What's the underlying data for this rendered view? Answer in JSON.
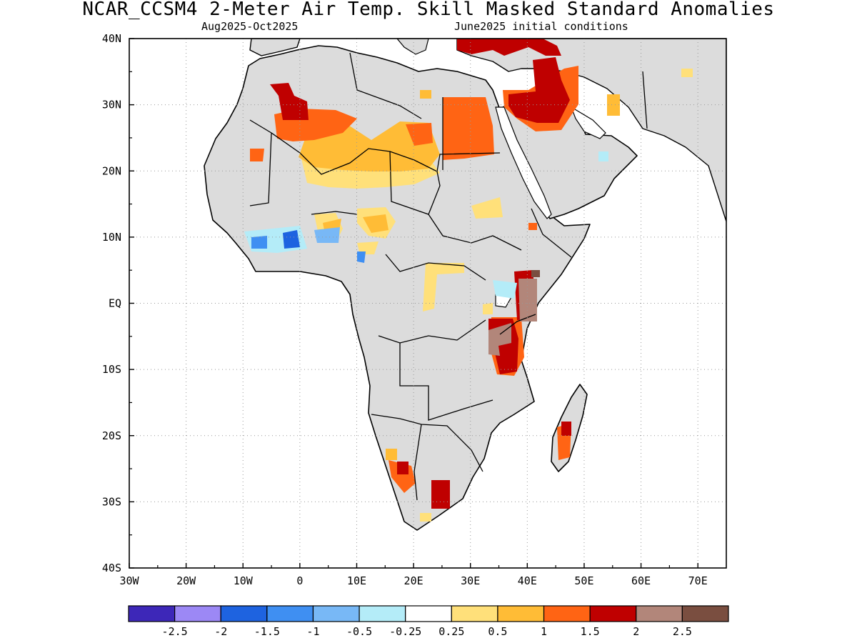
{
  "title": "NCAR_CCSM4 2-Meter Air Temp. Skill Masked Standard Anomalies",
  "period": "Aug2025-Oct2025",
  "initial_conditions": "June2025 initial conditions",
  "map": {
    "lon_range": [
      -30,
      75
    ],
    "lat_range": [
      -40,
      40
    ],
    "lon_ticks": [
      "30W",
      "20W",
      "10W",
      "0",
      "10E",
      "20E",
      "30E",
      "40E",
      "50E",
      "60E",
      "70E"
    ],
    "lat_ticks": [
      "40N",
      "30N",
      "20N",
      "10N",
      "EQ",
      "10S",
      "20S",
      "30S",
      "40S"
    ],
    "land_color": "#dcdcdc",
    "grid": "dotted"
  },
  "colorbar": {
    "colors": [
      "#3d27b8",
      "#9c88f5",
      "#1e63e0",
      "#3f8ff2",
      "#78b8f6",
      "#b4ecf8",
      "#ffffff",
      "#ffe07a",
      "#ffbc36",
      "#ff6414",
      "#bf0000",
      "#b2867a",
      "#7a4e40"
    ],
    "labels": [
      "-2.5",
      "-2",
      "-1.5",
      "-1",
      "-0.5",
      "-0.25",
      "0.25",
      "0.5",
      "1",
      "1.5",
      "2",
      "2.5"
    ]
  }
}
